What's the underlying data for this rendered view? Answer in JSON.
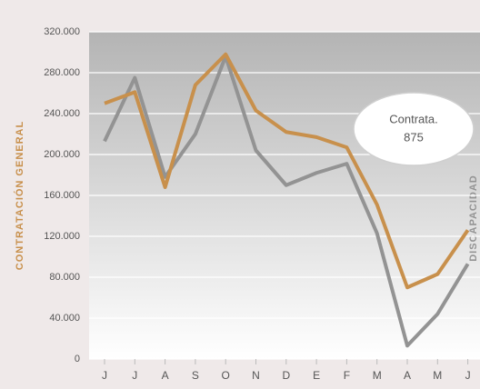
{
  "chart_data": {
    "type": "line",
    "ylabel": "CONTRATACIÓN GENERAL",
    "y2label": "DISCAPACIDAD",
    "categories": [
      "J",
      "J",
      "A",
      "S",
      "O",
      "N",
      "D",
      "E",
      "F",
      "M",
      "A",
      "M",
      "J"
    ],
    "series": [
      {
        "name": "CONTRATACIÓN GENERAL",
        "color": "#c8904c",
        "values": [
          250000,
          261000,
          168000,
          268000,
          298000,
          243000,
          222000,
          217000,
          207000,
          151000,
          70000,
          83000,
          126000
        ]
      },
      {
        "name": "DISCAPACIDAD",
        "color": "#939393",
        "values": [
          213000,
          275000,
          178000,
          220000,
          296000,
          204000,
          170000,
          182000,
          191000,
          123000,
          13000,
          44000,
          93000
        ]
      }
    ],
    "ylim": [
      0,
      320000
    ],
    "yticks": [
      0,
      {
        "value": 40000,
        "label": "40.000"
      },
      {
        "value": 80000,
        "label": "80.000"
      },
      {
        "value": 120000,
        "label": "120.000"
      },
      {
        "value": 160000,
        "label": "160.000"
      },
      {
        "value": 200000,
        "label": "200.000"
      },
      {
        "value": 240000,
        "label": "240.000"
      },
      {
        "value": 280000,
        "label": "280.000"
      },
      {
        "value": 320000,
        "label": "320.000"
      }
    ],
    "grid": true,
    "annotation": {
      "lines": [
        "Contrata.",
        "875"
      ]
    }
  }
}
